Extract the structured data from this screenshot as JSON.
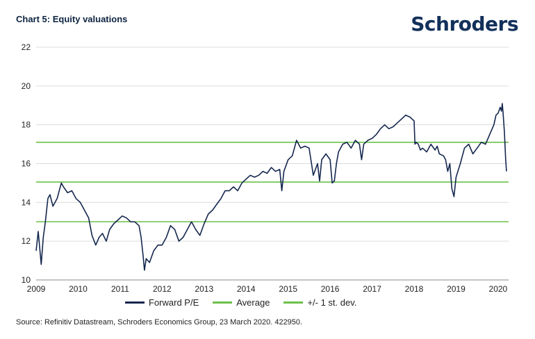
{
  "title": "Chart 5: Equity valuations",
  "logo_text": "Schroders",
  "source": "Source: Refinitiv Datastream, Schroders Economics Group, 23 March 2020. 422950.",
  "legend": [
    {
      "label": "Forward P/E",
      "color": "#14274e"
    },
    {
      "label": "Average",
      "color": "#6cc04a"
    },
    {
      "label": "+/- 1 st. dev.",
      "color": "#6cc04a"
    }
  ],
  "chart_data": {
    "type": "line",
    "xlim": [
      2009,
      2020.25
    ],
    "ylim": [
      10,
      22
    ],
    "yticks": [
      10,
      12,
      14,
      16,
      18,
      20,
      22
    ],
    "xticks": [
      2009,
      2010,
      2011,
      2012,
      2013,
      2014,
      2015,
      2016,
      2017,
      2018,
      2019,
      2020
    ],
    "grid": true,
    "legend_position": "bottom",
    "series": [
      {
        "name": "Forward P/E",
        "color": "#14274e",
        "x": [
          2009.0,
          2009.05,
          2009.08,
          2009.12,
          2009.17,
          2009.22,
          2009.28,
          2009.33,
          2009.4,
          2009.5,
          2009.6,
          2009.65,
          2009.75,
          2009.85,
          2009.95,
          2010.05,
          2010.15,
          2010.25,
          2010.33,
          2010.42,
          2010.5,
          2010.58,
          2010.67,
          2010.75,
          2010.85,
          2010.95,
          2011.05,
          2011.15,
          2011.25,
          2011.35,
          2011.45,
          2011.5,
          2011.55,
          2011.58,
          2011.62,
          2011.7,
          2011.8,
          2011.9,
          2012.0,
          2012.1,
          2012.2,
          2012.3,
          2012.4,
          2012.5,
          2012.6,
          2012.7,
          2012.8,
          2012.9,
          2013.0,
          2013.1,
          2013.2,
          2013.3,
          2013.4,
          2013.5,
          2013.6,
          2013.7,
          2013.8,
          2013.9,
          2014.0,
          2014.1,
          2014.2,
          2014.3,
          2014.4,
          2014.5,
          2014.6,
          2014.7,
          2014.8,
          2014.85,
          2014.9,
          2015.0,
          2015.1,
          2015.2,
          2015.3,
          2015.4,
          2015.5,
          2015.55,
          2015.6,
          2015.7,
          2015.75,
          2015.8,
          2015.9,
          2016.0,
          2016.05,
          2016.1,
          2016.15,
          2016.2,
          2016.3,
          2016.4,
          2016.5,
          2016.6,
          2016.7,
          2016.75,
          2016.8,
          2016.85,
          2016.9,
          2017.0,
          2017.1,
          2017.2,
          2017.3,
          2017.4,
          2017.5,
          2017.6,
          2017.7,
          2017.8,
          2017.9,
          2018.0,
          2018.02,
          2018.05,
          2018.1,
          2018.15,
          2018.2,
          2018.3,
          2018.4,
          2018.5,
          2018.55,
          2018.6,
          2018.7,
          2018.75,
          2018.8,
          2018.85,
          2018.9,
          2018.95,
          2019.0,
          2019.1,
          2019.2,
          2019.3,
          2019.4,
          2019.5,
          2019.6,
          2019.7,
          2019.8,
          2019.9,
          2019.95,
          2020.0,
          2020.05,
          2020.08,
          2020.1,
          2020.12,
          2020.15,
          2020.18,
          2020.2
        ],
        "y": [
          11.5,
          12.5,
          11.8,
          10.8,
          12.2,
          13.0,
          14.2,
          14.4,
          13.8,
          14.2,
          15.0,
          14.8,
          14.5,
          14.6,
          14.2,
          14.0,
          13.6,
          13.2,
          12.3,
          11.8,
          12.2,
          12.4,
          12.0,
          12.6,
          12.9,
          13.1,
          13.3,
          13.2,
          13.0,
          13.0,
          12.8,
          12.2,
          11.2,
          10.5,
          11.1,
          10.9,
          11.5,
          11.8,
          11.8,
          12.2,
          12.8,
          12.6,
          12.0,
          12.2,
          12.6,
          13.0,
          12.6,
          12.3,
          12.9,
          13.4,
          13.6,
          13.9,
          14.2,
          14.6,
          14.6,
          14.8,
          14.6,
          15.0,
          15.2,
          15.4,
          15.3,
          15.4,
          15.6,
          15.5,
          15.8,
          15.6,
          15.7,
          14.6,
          15.6,
          16.2,
          16.4,
          17.2,
          16.8,
          16.9,
          16.8,
          16.1,
          15.4,
          16.0,
          15.1,
          16.2,
          16.5,
          16.2,
          15.0,
          15.1,
          16.0,
          16.6,
          17.0,
          17.1,
          16.8,
          17.2,
          17.0,
          16.2,
          17.0,
          17.1,
          17.2,
          17.3,
          17.5,
          17.8,
          18.0,
          17.8,
          17.9,
          18.1,
          18.3,
          18.5,
          18.4,
          18.2,
          17.0,
          17.1,
          17.0,
          16.7,
          16.8,
          16.6,
          17.0,
          16.7,
          16.9,
          16.5,
          16.4,
          16.2,
          15.6,
          16.0,
          14.7,
          14.3,
          15.3,
          16.0,
          16.8,
          17.0,
          16.5,
          16.8,
          17.1,
          17.0,
          17.5,
          18.0,
          18.5,
          18.6,
          18.9,
          18.7,
          19.1,
          18.6,
          17.6,
          16.2,
          15.6
        ]
      }
    ],
    "reference_lines": [
      {
        "name": "Average",
        "value": 15.05,
        "color": "#6cc04a"
      },
      {
        "name": "+1 st. dev.",
        "value": 17.1,
        "color": "#6cc04a"
      },
      {
        "name": "-1 st. dev.",
        "value": 13.0,
        "color": "#6cc04a"
      }
    ]
  }
}
